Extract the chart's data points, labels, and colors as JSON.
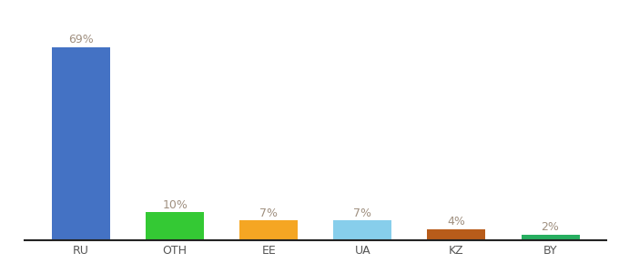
{
  "categories": [
    "RU",
    "OTH",
    "EE",
    "UA",
    "KZ",
    "BY"
  ],
  "values": [
    69,
    10,
    7,
    7,
    4,
    2
  ],
  "bar_colors": [
    "#4472c4",
    "#34c934",
    "#f5a623",
    "#87ceeb",
    "#b85c1a",
    "#27ae60"
  ],
  "labels": [
    "69%",
    "10%",
    "7%",
    "7%",
    "4%",
    "2%"
  ],
  "background_color": "#ffffff",
  "ylim": [
    0,
    78
  ],
  "label_fontsize": 9,
  "tick_fontsize": 9,
  "bar_width": 0.62,
  "label_color": "#a09080",
  "tick_color": "#555555",
  "spine_color": "#222222"
}
